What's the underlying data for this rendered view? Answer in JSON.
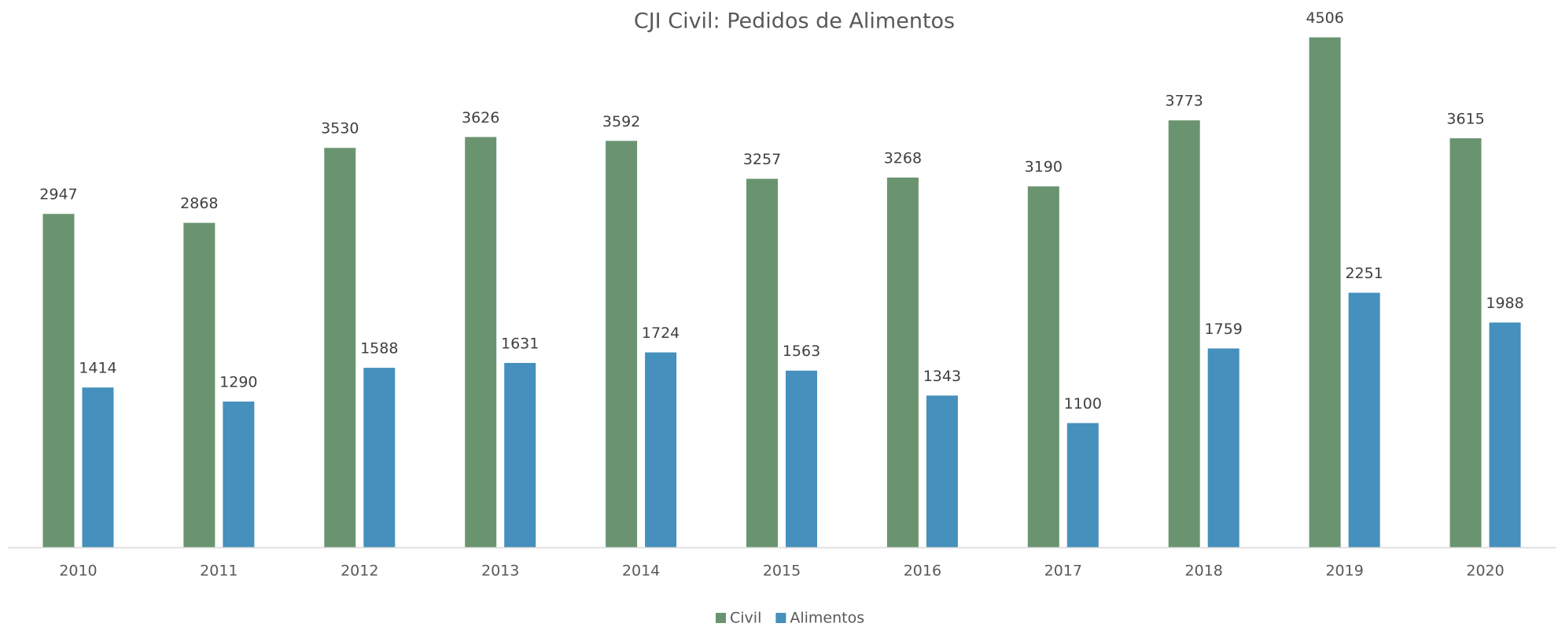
{
  "chart_data": {
    "type": "bar",
    "title": "CJI Civil: Pedidos de Alimentos",
    "categories": [
      "2010",
      "2011",
      "2012",
      "2013",
      "2014",
      "2015",
      "2016",
      "2017",
      "2018",
      "2019",
      "2020"
    ],
    "series": [
      {
        "name": "Civil",
        "color": "#6a9470",
        "values": [
          2947,
          2868,
          3530,
          3626,
          3592,
          3257,
          3268,
          3190,
          3773,
          4506,
          3615
        ]
      },
      {
        "name": "Alimentos",
        "color": "#4590bc",
        "values": [
          1414,
          1290,
          1588,
          1631,
          1724,
          1563,
          1343,
          1100,
          1759,
          2251,
          1988
        ]
      }
    ],
    "ylim": [
      0,
      4600
    ],
    "legend": "bottom"
  }
}
